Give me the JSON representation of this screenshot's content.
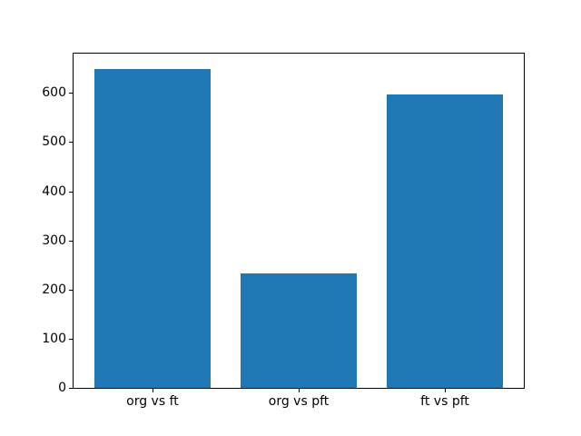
{
  "figure": {
    "background": "#ffffff"
  },
  "chart_data": {
    "type": "bar",
    "title": "",
    "xlabel": "",
    "ylabel": "",
    "categories": [
      "org vs ft",
      "org vs pft",
      "ft vs pft"
    ],
    "values": [
      648,
      232,
      597
    ],
    "yticks": [
      0,
      100,
      200,
      300,
      400,
      500,
      600
    ],
    "ylim": [
      0,
      680
    ],
    "bar_color": "#1f77b4",
    "axis_color": "#000000",
    "text_color": "#000000",
    "bar_width_fraction": 0.8,
    "grid": false,
    "legend": null
  }
}
